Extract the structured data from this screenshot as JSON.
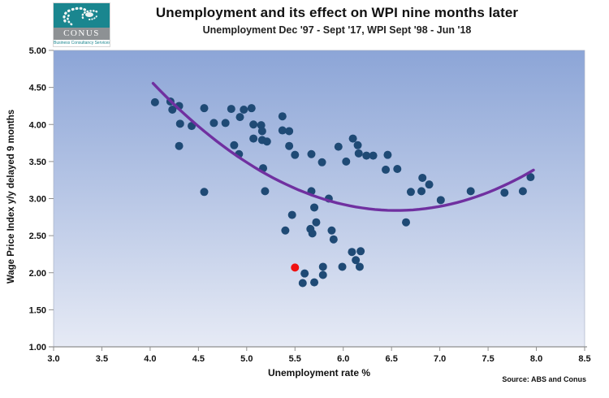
{
  "header": {
    "logo": {
      "name": "CONUS",
      "tagline": "Business Consultancy Services"
    },
    "title": "Unemployment and its effect on WPI nine months later",
    "subtitle": "Unemployment Dec '97 - Sept '17, WPI Sept '98 - Jun '18"
  },
  "chart_data": {
    "type": "scatter",
    "title": "Unemployment and its effect on WPI nine months later",
    "subtitle": "Unemployment Dec '97 - Sept '17, WPI Sept '98 - Jun '18",
    "xlabel": "Unemployment rate %",
    "ylabel": "Wage Price Index y/y delayed 9 months",
    "source": "Source: ABS and Conus",
    "xlim": [
      3.0,
      8.5
    ],
    "ylim": [
      1.0,
      5.0
    ],
    "x_ticks": [
      "3.0",
      "3.5",
      "4.0",
      "4.5",
      "5.0",
      "5.5",
      "6.0",
      "6.5",
      "7.0",
      "7.5",
      "8.0",
      "8.5"
    ],
    "y_ticks": [
      "1.00",
      "1.50",
      "2.00",
      "2.50",
      "3.00",
      "3.50",
      "4.00",
      "4.50",
      "5.00"
    ],
    "grid": false,
    "legend": "none",
    "background_gradient": {
      "top": "#8ca5d7",
      "bottom": "#e6eaf5"
    },
    "series": [
      {
        "name": "unemployment-vs-wpi",
        "marker_color": "#1f4a75",
        "points": [
          [
            4.05,
            4.3
          ],
          [
            4.21,
            4.31
          ],
          [
            4.23,
            4.2
          ],
          [
            4.3,
            4.25
          ],
          [
            4.31,
            4.01
          ],
          [
            4.3,
            3.71
          ],
          [
            4.43,
            3.98
          ],
          [
            4.56,
            4.22
          ],
          [
            4.56,
            3.09
          ],
          [
            4.66,
            4.02
          ],
          [
            4.78,
            4.02
          ],
          [
            4.84,
            4.21
          ],
          [
            4.87,
            3.72
          ],
          [
            4.92,
            3.6
          ],
          [
            4.93,
            4.1
          ],
          [
            4.97,
            4.2
          ],
          [
            5.05,
            4.22
          ],
          [
            5.07,
            4.0
          ],
          [
            5.07,
            3.81
          ],
          [
            5.15,
            3.99
          ],
          [
            5.16,
            3.91
          ],
          [
            5.16,
            3.79
          ],
          [
            5.21,
            3.77
          ],
          [
            5.17,
            3.41
          ],
          [
            5.19,
            3.1
          ],
          [
            5.37,
            4.11
          ],
          [
            5.37,
            3.92
          ],
          [
            5.44,
            3.91
          ],
          [
            5.44,
            3.71
          ],
          [
            5.5,
            3.59
          ],
          [
            5.67,
            3.6
          ],
          [
            5.78,
            3.49
          ],
          [
            5.67,
            3.1
          ],
          [
            5.85,
            3.0
          ],
          [
            5.4,
            2.57
          ],
          [
            5.47,
            2.78
          ],
          [
            5.66,
            2.59
          ],
          [
            5.68,
            2.53
          ],
          [
            5.7,
            2.88
          ],
          [
            5.72,
            2.68
          ],
          [
            5.88,
            2.57
          ],
          [
            5.9,
            2.45
          ],
          [
            5.58,
            1.86
          ],
          [
            5.6,
            1.99
          ],
          [
            5.7,
            1.87
          ],
          [
            5.79,
            2.08
          ],
          [
            5.79,
            1.97
          ],
          [
            5.99,
            2.08
          ],
          [
            6.09,
            2.28
          ],
          [
            6.18,
            2.29
          ],
          [
            6.13,
            2.17
          ],
          [
            6.17,
            2.08
          ],
          [
            5.95,
            3.7
          ],
          [
            6.03,
            3.5
          ],
          [
            6.1,
            3.81
          ],
          [
            6.15,
            3.72
          ],
          [
            6.16,
            3.61
          ],
          [
            6.24,
            3.58
          ],
          [
            6.31,
            3.58
          ],
          [
            6.46,
            3.59
          ],
          [
            6.44,
            3.39
          ],
          [
            6.56,
            3.4
          ],
          [
            6.65,
            2.68
          ],
          [
            6.7,
            3.09
          ],
          [
            6.81,
            3.1
          ],
          [
            6.82,
            3.28
          ],
          [
            6.89,
            3.19
          ],
          [
            7.01,
            2.98
          ],
          [
            7.32,
            3.1
          ],
          [
            7.67,
            3.08
          ],
          [
            7.86,
            3.1
          ],
          [
            7.94,
            3.29
          ]
        ]
      },
      {
        "name": "latest-observation-highlight",
        "marker_color": "#f01111",
        "points": [
          [
            5.5,
            2.07
          ]
        ]
      }
    ],
    "trendline": {
      "name": "polynomial-trend",
      "color": "#7030a0",
      "width": 3.4,
      "form": "quadratic",
      "a": 0.27,
      "vertex_x": 6.55,
      "vertex_y": 2.84,
      "x_start": 4.03,
      "x_end": 7.97
    },
    "axis_color": "#8f8f8f",
    "marker_radius": 5
  }
}
